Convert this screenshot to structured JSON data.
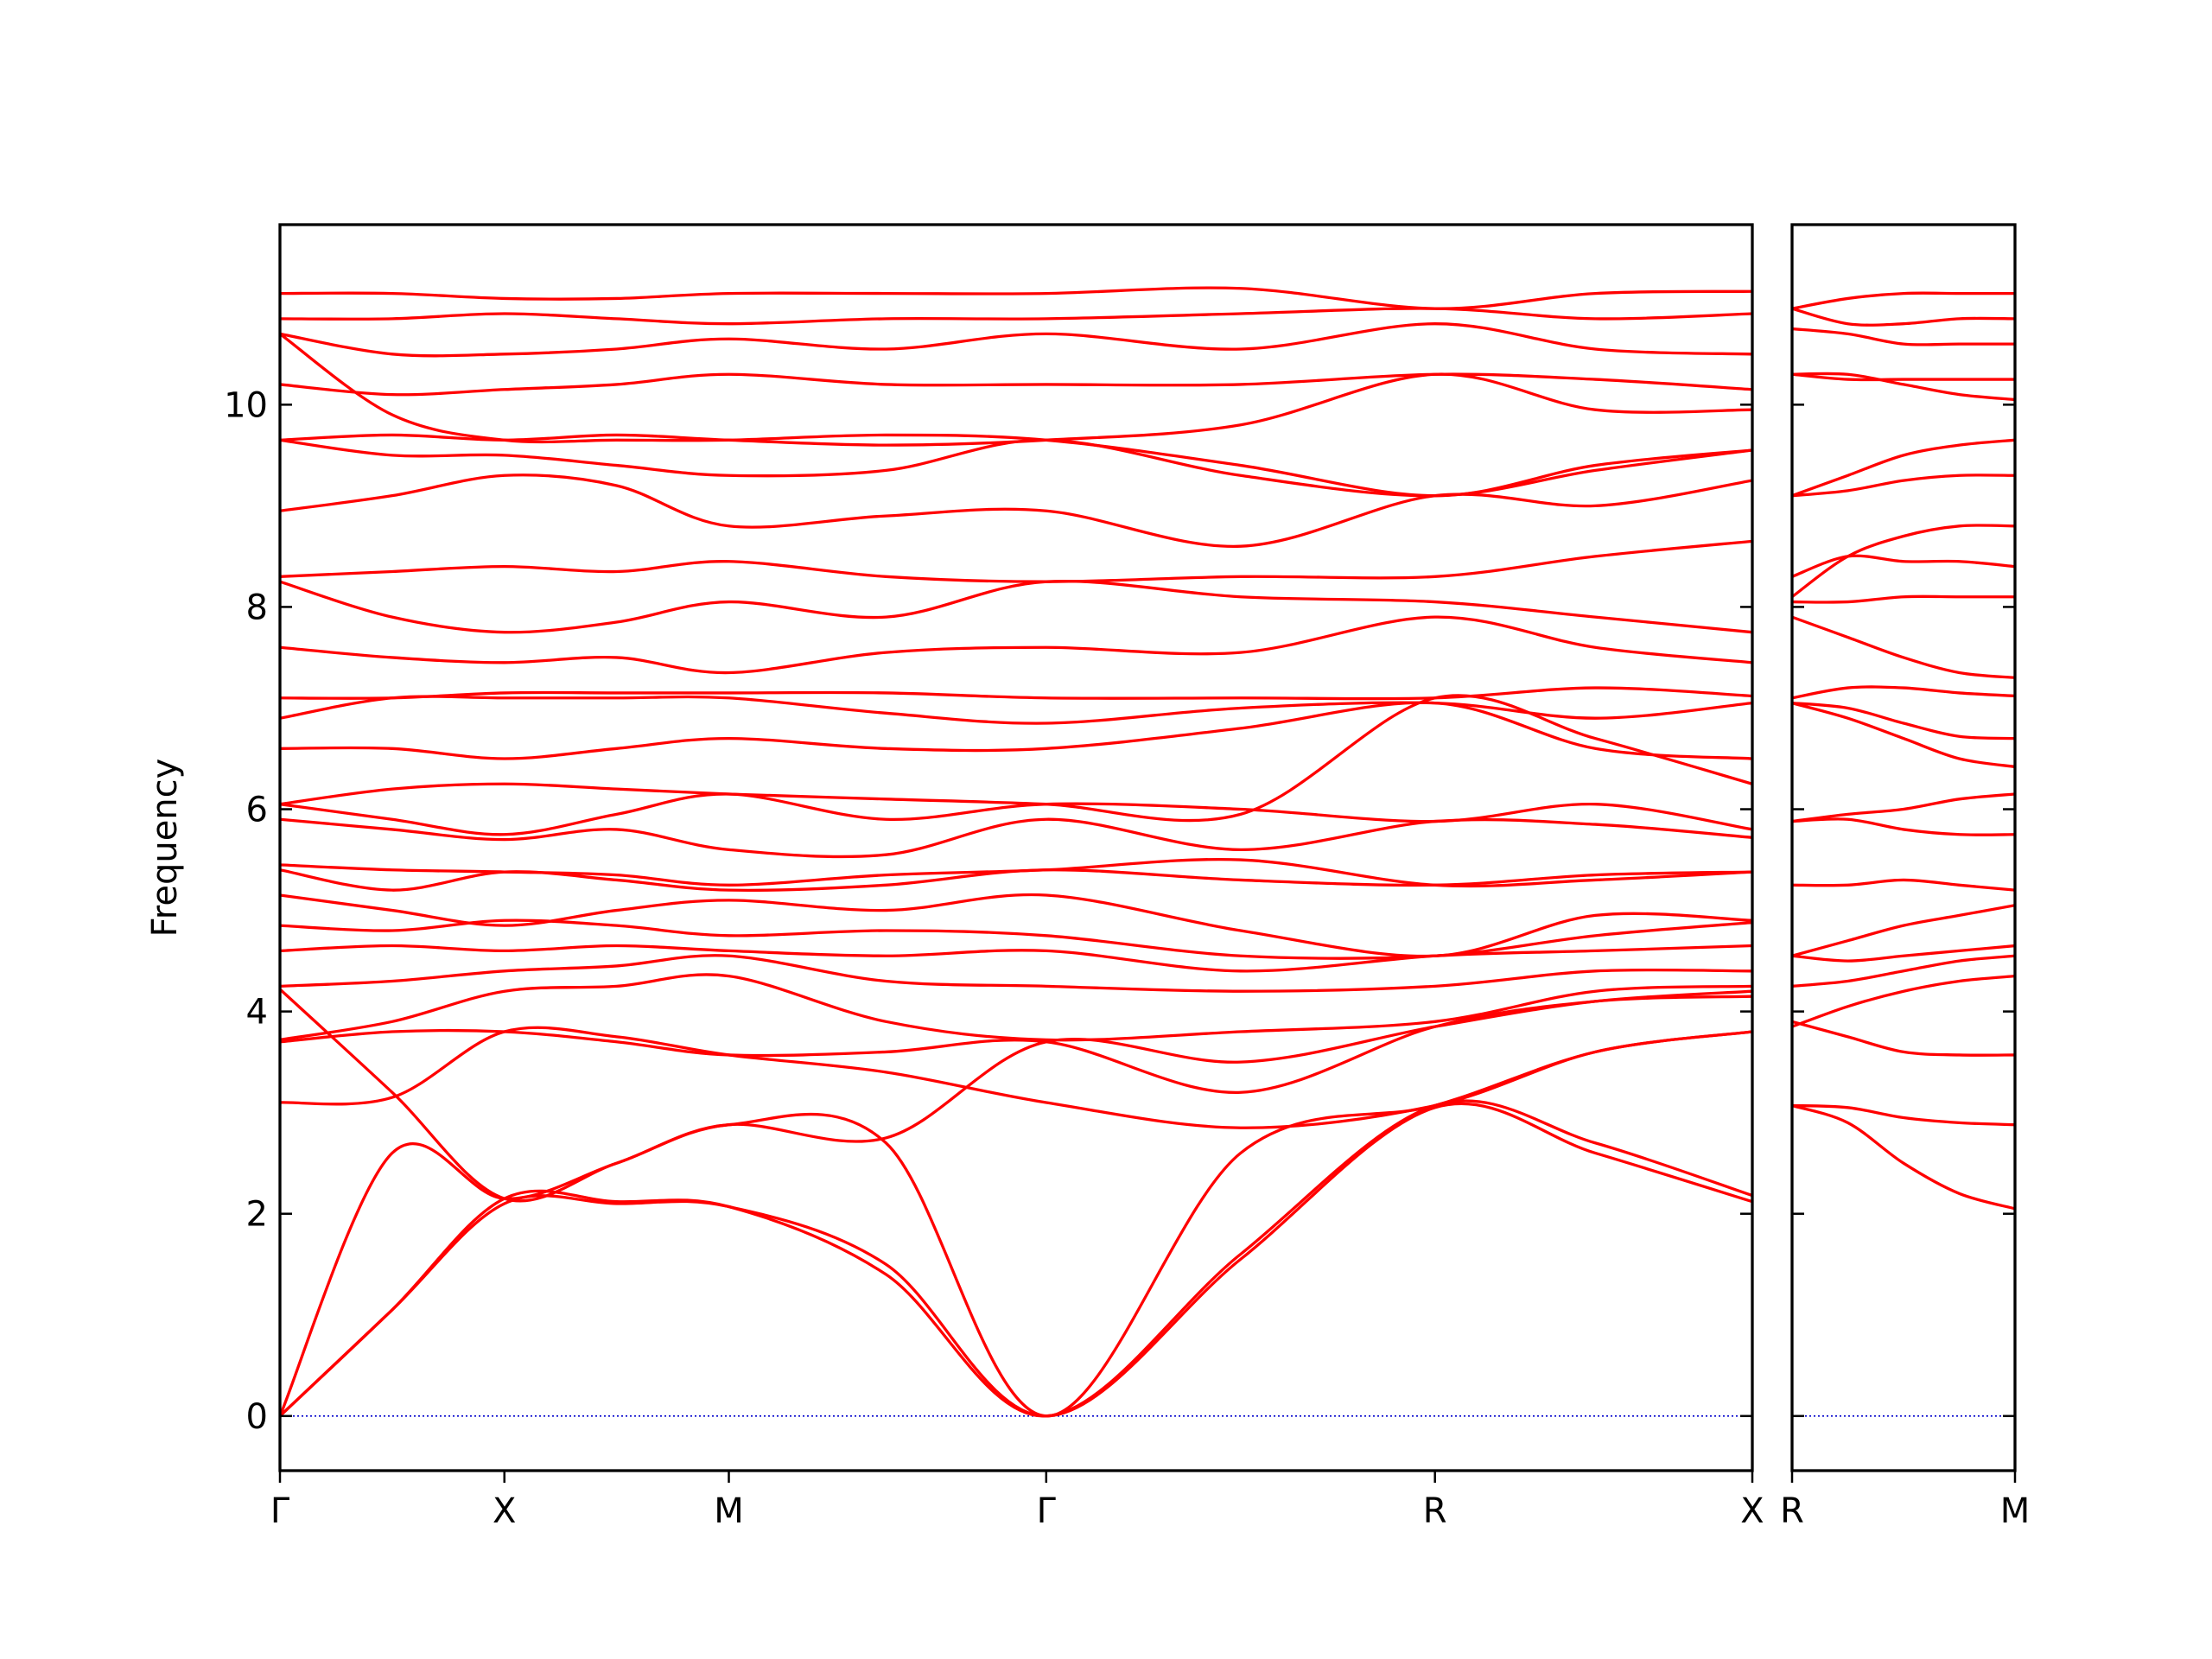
{
  "chart_data": [
    {
      "type": "line",
      "y_label": "Frequency",
      "color": "#ff0000",
      "x": [
        0,
        0.25,
        0.5,
        0.75,
        1.0,
        1.35,
        1.707,
        2.14,
        2.573,
        2.93,
        3.28
      ],
      "xlim": [
        0,
        3.28
      ],
      "xticks": [
        {
          "value": 0,
          "label": "Γ"
        },
        {
          "value": 0.5,
          "label": "X"
        },
        {
          "value": 1.0,
          "label": "M"
        },
        {
          "value": 1.707,
          "label": "Γ"
        },
        {
          "value": 2.573,
          "label": "R"
        },
        {
          "value": 3.28,
          "label": "X"
        }
      ],
      "ylim": [
        -0.54,
        11.78
      ],
      "yticks": [
        0,
        2,
        4,
        6,
        8,
        10
      ],
      "zero_line": {
        "value": 0,
        "color": "#0000cc"
      },
      "series": [
        {
          "values": [
            0,
            1.05,
            2.1,
            2.1,
            2.07,
            1.5,
            0,
            1.55,
            3.05,
            2.6,
            2.12
          ]
        },
        {
          "values": [
            0,
            1.05,
            2.15,
            2.12,
            2.07,
            1.4,
            0,
            1.6,
            3.07,
            2.7,
            2.18
          ]
        },
        {
          "values": [
            0,
            2.6,
            2.15,
            2.5,
            2.88,
            2.7,
            0,
            2.6,
            3.07,
            3.6,
            3.8
          ]
        },
        {
          "values": [
            3.1,
            3.15,
            3.8,
            3.75,
            3.57,
            3.4,
            3.1,
            2.85,
            3.07,
            3.6,
            3.8
          ]
        },
        {
          "values": [
            3.7,
            3.8,
            3.8,
            3.7,
            3.57,
            3.6,
            3.7,
            3.2,
            3.85,
            4.1,
            4.15
          ]
        },
        {
          "values": [
            3.72,
            3.9,
            4.2,
            4.25,
            4.35,
            3.9,
            3.72,
            3.8,
            3.9,
            4.2,
            4.25
          ]
        },
        {
          "values": [
            4.22,
            3.2,
            2.15,
            2.5,
            2.88,
            2.75,
            3.7,
            3.5,
            3.85,
            4.1,
            4.2
          ]
        },
        {
          "values": [
            4.25,
            4.3,
            4.4,
            4.45,
            4.55,
            4.3,
            4.25,
            4.2,
            4.25,
            4.4,
            4.4
          ]
        },
        {
          "values": [
            4.6,
            4.65,
            4.6,
            4.65,
            4.6,
            4.55,
            4.6,
            4.4,
            4.55,
            4.6,
            4.65
          ]
        },
        {
          "values": [
            4.85,
            4.8,
            4.9,
            4.85,
            4.75,
            4.8,
            4.75,
            4.55,
            4.55,
            4.75,
            4.88
          ]
        },
        {
          "values": [
            5.15,
            5.0,
            4.85,
            5.0,
            5.1,
            5.0,
            5.15,
            4.8,
            4.55,
            4.95,
            4.9
          ]
        },
        {
          "values": [
            5.4,
            5.2,
            5.38,
            5.3,
            5.2,
            5.25,
            5.4,
            5.3,
            5.25,
            5.35,
            5.38
          ]
        },
        {
          "values": [
            5.45,
            5.4,
            5.38,
            5.35,
            5.25,
            5.35,
            5.4,
            5.5,
            5.25,
            5.3,
            5.38
          ]
        },
        {
          "values": [
            5.9,
            5.8,
            5.7,
            5.8,
            5.6,
            5.55,
            5.9,
            5.6,
            5.88,
            5.85,
            5.72
          ]
        },
        {
          "values": [
            6.05,
            5.9,
            5.75,
            5.95,
            6.15,
            5.9,
            6.05,
            6.0,
            5.88,
            6.05,
            5.8
          ]
        },
        {
          "values": [
            6.05,
            6.2,
            6.25,
            6.2,
            6.15,
            6.1,
            6.05,
            5.95,
            7.1,
            6.7,
            6.25
          ]
        },
        {
          "values": [
            6.6,
            6.6,
            6.5,
            6.6,
            6.7,
            6.6,
            6.6,
            6.8,
            7.05,
            6.6,
            6.5
          ]
        },
        {
          "values": [
            6.9,
            7.1,
            7.1,
            7.1,
            7.1,
            6.95,
            6.85,
            7.0,
            7.05,
            6.9,
            7.05
          ]
        },
        {
          "values": [
            7.1,
            7.1,
            7.15,
            7.15,
            7.15,
            7.15,
            7.1,
            7.1,
            7.1,
            7.2,
            7.12
          ]
        },
        {
          "values": [
            7.6,
            7.5,
            7.45,
            7.5,
            7.35,
            7.55,
            7.6,
            7.55,
            7.9,
            7.6,
            7.45
          ]
        },
        {
          "values": [
            8.25,
            7.9,
            7.75,
            7.85,
            8.05,
            7.9,
            8.25,
            8.1,
            8.05,
            7.9,
            7.75
          ]
        },
        {
          "values": [
            8.3,
            8.35,
            8.4,
            8.35,
            8.45,
            8.3,
            8.25,
            8.3,
            8.3,
            8.5,
            8.65
          ]
        },
        {
          "values": [
            8.95,
            9.1,
            9.3,
            9.2,
            8.8,
            8.9,
            8.95,
            8.6,
            9.1,
            9.0,
            9.25
          ]
        },
        {
          "values": [
            9.65,
            9.5,
            9.5,
            9.4,
            9.3,
            9.35,
            9.65,
            9.3,
            9.1,
            9.35,
            9.55
          ]
        },
        {
          "values": [
            10.7,
            9.9,
            9.65,
            9.65,
            9.65,
            9.7,
            9.65,
            9.4,
            9.1,
            9.4,
            9.55
          ]
        },
        {
          "values": [
            9.65,
            9.7,
            9.65,
            9.7,
            9.65,
            9.6,
            9.65,
            9.8,
            10.3,
            9.95,
            9.95
          ]
        },
        {
          "values": [
            10.2,
            10.1,
            10.15,
            10.2,
            10.3,
            10.2,
            10.2,
            10.2,
            10.3,
            10.25,
            10.15
          ]
        },
        {
          "values": [
            10.7,
            10.5,
            10.5,
            10.55,
            10.65,
            10.55,
            10.7,
            10.55,
            10.8,
            10.55,
            10.5
          ]
        },
        {
          "values": [
            10.85,
            10.85,
            10.9,
            10.85,
            10.8,
            10.85,
            10.85,
            10.9,
            10.95,
            10.85,
            10.9
          ]
        },
        {
          "values": [
            11.1,
            11.1,
            11.05,
            11.05,
            11.1,
            11.1,
            11.1,
            11.15,
            10.95,
            11.1,
            11.12
          ]
        }
      ]
    },
    {
      "type": "line",
      "color": "#ff0000",
      "x": [
        0,
        0.125,
        0.25,
        0.375,
        0.5
      ],
      "xlim": [
        0,
        0.5
      ],
      "xticks": [
        {
          "value": 0,
          "label": "R"
        },
        {
          "value": 0.5,
          "label": "M"
        }
      ],
      "ylim": [
        -0.54,
        11.78
      ],
      "yticks": [
        0,
        2,
        4,
        6,
        8,
        10
      ],
      "zero_line": {
        "value": 0,
        "color": "#0000cc"
      },
      "series": [
        {
          "values": [
            3.07,
            3.05,
            2.95,
            2.9,
            2.88
          ]
        },
        {
          "values": [
            3.07,
            2.9,
            2.5,
            2.2,
            2.05
          ]
        },
        {
          "values": [
            3.9,
            3.75,
            3.6,
            3.57,
            3.57
          ]
        },
        {
          "values": [
            3.85,
            4.05,
            4.2,
            4.3,
            4.35
          ]
        },
        {
          "values": [
            4.25,
            4.3,
            4.4,
            4.5,
            4.55
          ]
        },
        {
          "values": [
            4.55,
            4.5,
            4.55,
            4.6,
            4.65
          ]
        },
        {
          "values": [
            4.55,
            4.7,
            4.85,
            4.95,
            5.05
          ]
        },
        {
          "values": [
            5.25,
            5.25,
            5.3,
            5.25,
            5.2
          ]
        },
        {
          "values": [
            5.88,
            5.9,
            5.8,
            5.75,
            5.75
          ]
        },
        {
          "values": [
            5.88,
            5.95,
            6.0,
            6.1,
            6.15
          ]
        },
        {
          "values": [
            7.05,
            6.9,
            6.7,
            6.5,
            6.42
          ]
        },
        {
          "values": [
            7.05,
            7.0,
            6.85,
            6.72,
            6.7
          ]
        },
        {
          "values": [
            7.1,
            7.2,
            7.2,
            7.15,
            7.12
          ]
        },
        {
          "values": [
            7.9,
            7.7,
            7.5,
            7.35,
            7.3
          ]
        },
        {
          "values": [
            8.05,
            8.05,
            8.1,
            8.1,
            8.1
          ]
        },
        {
          "values": [
            8.3,
            8.5,
            8.45,
            8.45,
            8.4
          ]
        },
        {
          "values": [
            8.1,
            8.5,
            8.7,
            8.8,
            8.8
          ]
        },
        {
          "values": [
            9.1,
            9.15,
            9.25,
            9.3,
            9.3
          ]
        },
        {
          "values": [
            9.1,
            9.3,
            9.5,
            9.6,
            9.65
          ]
        },
        {
          "values": [
            10.3,
            10.3,
            10.2,
            10.1,
            10.05
          ]
        },
        {
          "values": [
            10.3,
            10.25,
            10.25,
            10.25,
            10.25
          ]
        },
        {
          "values": [
            10.75,
            10.7,
            10.6,
            10.6,
            10.6
          ]
        },
        {
          "values": [
            10.95,
            10.8,
            10.8,
            10.85,
            10.85
          ]
        },
        {
          "values": [
            10.95,
            11.05,
            11.1,
            11.1,
            11.1
          ]
        }
      ]
    }
  ]
}
